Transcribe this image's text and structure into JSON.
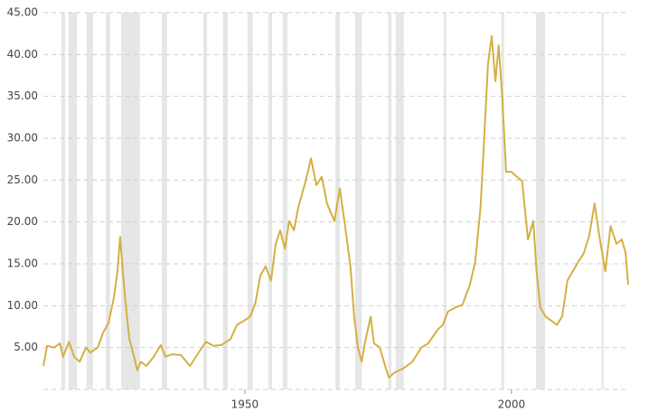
{
  "chart_data": {
    "type": "line",
    "x": [
      1912.2,
      1912.9,
      1914.2,
      1915.3,
      1915.9,
      1917.0,
      1918.0,
      1919.0,
      1920.2,
      1921.0,
      1922.4,
      1923.4,
      1924.4,
      1925.4,
      1926.1,
      1926.6,
      1927.1,
      1927.6,
      1928.3,
      1929.2,
      1929.8,
      1930.5,
      1931.5,
      1932.9,
      1934.2,
      1935.1,
      1936.3,
      1938.0,
      1939.7,
      1941.0,
      1942.7,
      1944.1,
      1945.6,
      1947.3,
      1948.5,
      1949.8,
      1951.0,
      1952.0,
      1952.9,
      1953.9,
      1954.9,
      1955.8,
      1956.6,
      1957.5,
      1958.3,
      1959.2,
      1960.0,
      1961.4,
      1962.4,
      1963.4,
      1964.4,
      1965.4,
      1966.8,
      1967.8,
      1968.8,
      1969.8,
      1970.5,
      1971.2,
      1971.9,
      1972.5,
      1973.6,
      1974.2,
      1975.3,
      1976.3,
      1977.0,
      1978.0,
      1979.7,
      1981.4,
      1983.1,
      1984.4,
      1986.1,
      1987.1,
      1988.1,
      1989.5,
      1990.8,
      1992.2,
      1993.2,
      1994.2,
      1994.9,
      1995.6,
      1996.3,
      1997.0,
      1997.6,
      1998.3,
      1999.0,
      2000.0,
      2001.0,
      2002.0,
      2003.1,
      2004.1,
      2004.7,
      2005.4,
      2006.4,
      2007.5,
      2008.5,
      2009.5,
      2010.5,
      2011.5,
      2012.5,
      2013.6,
      2014.6,
      2015.6,
      2016.6,
      2017.6,
      2018.6,
      2019.7,
      2020.7,
      2021.4,
      2021.9
    ],
    "series": [
      {
        "color": "#d4b042",
        "values": [
          2.8,
          5.2,
          5.0,
          5.5,
          3.9,
          5.7,
          3.9,
          3.3,
          5.0,
          4.4,
          5.0,
          6.8,
          7.9,
          10.9,
          14.1,
          18.2,
          14.1,
          10.4,
          6.1,
          3.9,
          2.3,
          3.3,
          2.8,
          3.9,
          5.3,
          3.9,
          4.2,
          4.1,
          2.8,
          4.1,
          5.7,
          5.2,
          5.3,
          6.0,
          7.7,
          8.2,
          8.7,
          10.4,
          13.6,
          14.7,
          13.0,
          17.4,
          19.0,
          16.8,
          20.1,
          19.0,
          21.7,
          24.9,
          27.6,
          24.4,
          25.4,
          22.2,
          20.1,
          24.0,
          19.5,
          14.7,
          8.7,
          5.0,
          3.3,
          5.5,
          8.7,
          5.5,
          5.0,
          2.8,
          1.4,
          2.0,
          2.5,
          3.3,
          5.0,
          5.5,
          7.1,
          7.7,
          9.3,
          9.8,
          10.1,
          12.5,
          15.2,
          21.7,
          30.3,
          38.9,
          42.2,
          36.8,
          41.1,
          34.6,
          26.0,
          26.0,
          25.4,
          24.9,
          17.9,
          20.1,
          14.1,
          9.8,
          8.7,
          8.2,
          7.7,
          8.7,
          13.0,
          14.1,
          15.2,
          16.3,
          18.4,
          22.2,
          17.9,
          14.1,
          19.5,
          17.4,
          17.9,
          16.3,
          12.5
        ]
      }
    ],
    "shaded_ranges": [
      [
        1915.6,
        1916.3
      ],
      [
        1916.9,
        1918.5
      ],
      [
        1920.3,
        1921.5
      ],
      [
        1923.9,
        1924.7
      ],
      [
        1926.8,
        1930.3
      ],
      [
        1934.4,
        1935.4
      ],
      [
        1942.2,
        1942.9
      ],
      [
        1945.9,
        1946.8
      ],
      [
        1950.5,
        1951.5
      ],
      [
        1954.4,
        1955.1
      ],
      [
        1957.1,
        1958.0
      ],
      [
        1967.0,
        1967.8
      ],
      [
        1970.7,
        1971.9
      ],
      [
        1976.9,
        1977.5
      ],
      [
        1978.3,
        1979.8
      ],
      [
        1987.3,
        1987.8
      ],
      [
        1998.1,
        1998.6
      ],
      [
        2004.6,
        2006.3
      ],
      [
        2016.9,
        2017.3
      ]
    ],
    "shaded_color": "#e6e6e6",
    "xlim": [
      1912.2,
      2021.9
    ],
    "xticks": [
      1950,
      2000
    ],
    "ylim": [
      0,
      45
    ],
    "yticks": [
      {
        "value": 5,
        "label": "5.00"
      },
      {
        "value": 10,
        "label": "10.00"
      },
      {
        "value": 15,
        "label": "15.00"
      },
      {
        "value": 20,
        "label": "20.00"
      },
      {
        "value": 25,
        "label": "25.00"
      },
      {
        "value": 30,
        "label": "30.00"
      },
      {
        "value": 35,
        "label": "35.00"
      },
      {
        "value": 40,
        "label": "40.00"
      },
      {
        "value": 45,
        "label": "45.00"
      }
    ],
    "grid": true
  }
}
